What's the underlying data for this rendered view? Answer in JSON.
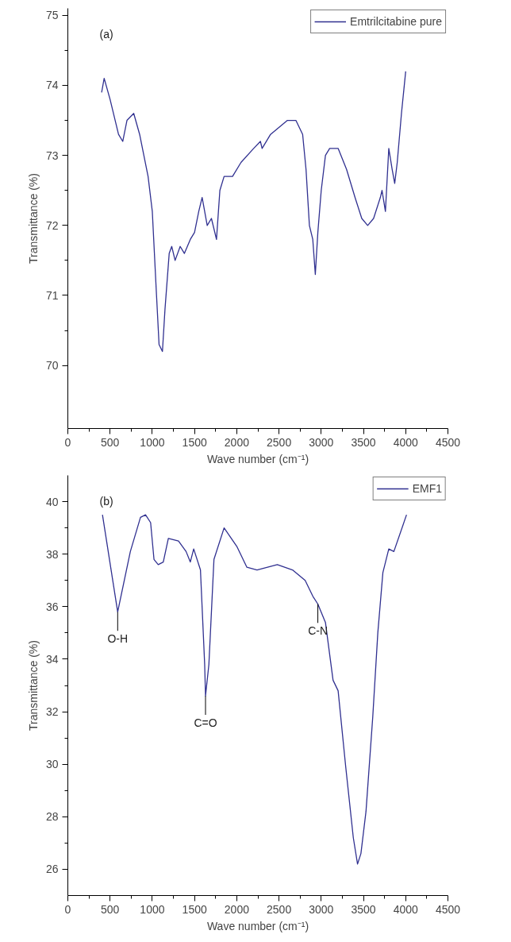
{
  "chart_data": [
    {
      "type": "line",
      "xlabel": "Wave number (cm⁻¹)",
      "ylabel": "Transmittance (%)",
      "annotations": [
        "(a)"
      ],
      "xlim": [
        0,
        4500
      ],
      "xticks": [
        0,
        500,
        1000,
        1500,
        2000,
        2500,
        3000,
        3500,
        4000,
        4500
      ],
      "ylim": [
        69.1,
        75.1
      ],
      "yticks": [
        70,
        71,
        72,
        73,
        74,
        75
      ],
      "grid": false,
      "legend": "top right",
      "marker": "none",
      "line_style": "solid",
      "series": [
        {
          "name": "Emtrilcitabine pure",
          "color": "#303090",
          "x": [
            400,
            430,
            500,
            600,
            650,
            700,
            780,
            850,
            900,
            950,
            1000,
            1050,
            1080,
            1120,
            1150,
            1200,
            1230,
            1270,
            1330,
            1380,
            1450,
            1500,
            1550,
            1590,
            1650,
            1700,
            1760,
            1800,
            1850,
            1950,
            2050,
            2200,
            2280,
            2300,
            2400,
            2600,
            2700,
            2780,
            2820,
            2860,
            2900,
            2930,
            2960,
            3000,
            3050,
            3100,
            3200,
            3300,
            3400,
            3480,
            3550,
            3620,
            3700,
            3720,
            3760,
            3800,
            3840,
            3870,
            3900,
            3950,
            4000
          ],
          "values": [
            73.9,
            74.1,
            73.8,
            73.3,
            73.2,
            73.5,
            73.6,
            73.3,
            73.0,
            72.7,
            72.2,
            71.0,
            70.3,
            70.2,
            70.8,
            71.6,
            71.7,
            71.5,
            71.7,
            71.6,
            71.8,
            71.9,
            72.2,
            72.4,
            72.0,
            72.1,
            71.8,
            72.5,
            72.7,
            72.7,
            72.9,
            73.1,
            73.2,
            73.1,
            73.3,
            73.5,
            73.5,
            73.3,
            72.8,
            72.0,
            71.8,
            71.3,
            71.9,
            72.5,
            73.0,
            73.1,
            73.1,
            72.8,
            72.4,
            72.1,
            72.0,
            72.1,
            72.4,
            72.5,
            72.2,
            73.1,
            72.8,
            72.6,
            72.9,
            73.6,
            74.2
          ]
        }
      ]
    },
    {
      "type": "line",
      "xlabel": "Wave number (cm⁻¹)",
      "ylabel": "Transmittance (%)",
      "annotations": [
        "(b)",
        {
          "text": "O-H",
          "x": 590,
          "y": 35.8
        },
        {
          "text": "C=O",
          "x": 1630,
          "y": 32.6
        },
        {
          "text": "C-N",
          "x": 2960,
          "y": 36.1
        }
      ],
      "xlim": [
        0,
        4500
      ],
      "xticks": [
        0,
        500,
        1000,
        1500,
        2000,
        2500,
        3000,
        3500,
        4000,
        4500
      ],
      "ylim": [
        25,
        41
      ],
      "yticks": [
        26,
        28,
        30,
        32,
        34,
        36,
        38,
        40
      ],
      "grid": false,
      "legend": "top right",
      "marker": "none",
      "line_style": "solid",
      "series": [
        {
          "name": "EMF1",
          "color": "#303090",
          "x": [
            410,
            590,
            740,
            860,
            920,
            980,
            1020,
            1070,
            1130,
            1190,
            1310,
            1400,
            1450,
            1490,
            1570,
            1620,
            1630,
            1670,
            1730,
            1850,
            2000,
            2120,
            2240,
            2480,
            2660,
            2810,
            2900,
            2960,
            3050,
            3140,
            3200,
            3290,
            3380,
            3430,
            3470,
            3530,
            3610,
            3670,
            3730,
            3800,
            3860,
            4010
          ],
          "values": [
            39.5,
            35.8,
            38.1,
            39.4,
            39.5,
            39.2,
            37.8,
            37.6,
            37.7,
            38.6,
            38.5,
            38.1,
            37.7,
            38.2,
            37.4,
            33.8,
            32.6,
            33.8,
            37.8,
            39.0,
            38.3,
            37.5,
            37.4,
            37.6,
            37.4,
            37.0,
            36.4,
            36.1,
            35.4,
            33.2,
            32.8,
            29.9,
            27.2,
            26.2,
            26.6,
            28.2,
            31.8,
            35.0,
            37.3,
            38.2,
            38.1,
            39.5
          ]
        }
      ]
    }
  ]
}
